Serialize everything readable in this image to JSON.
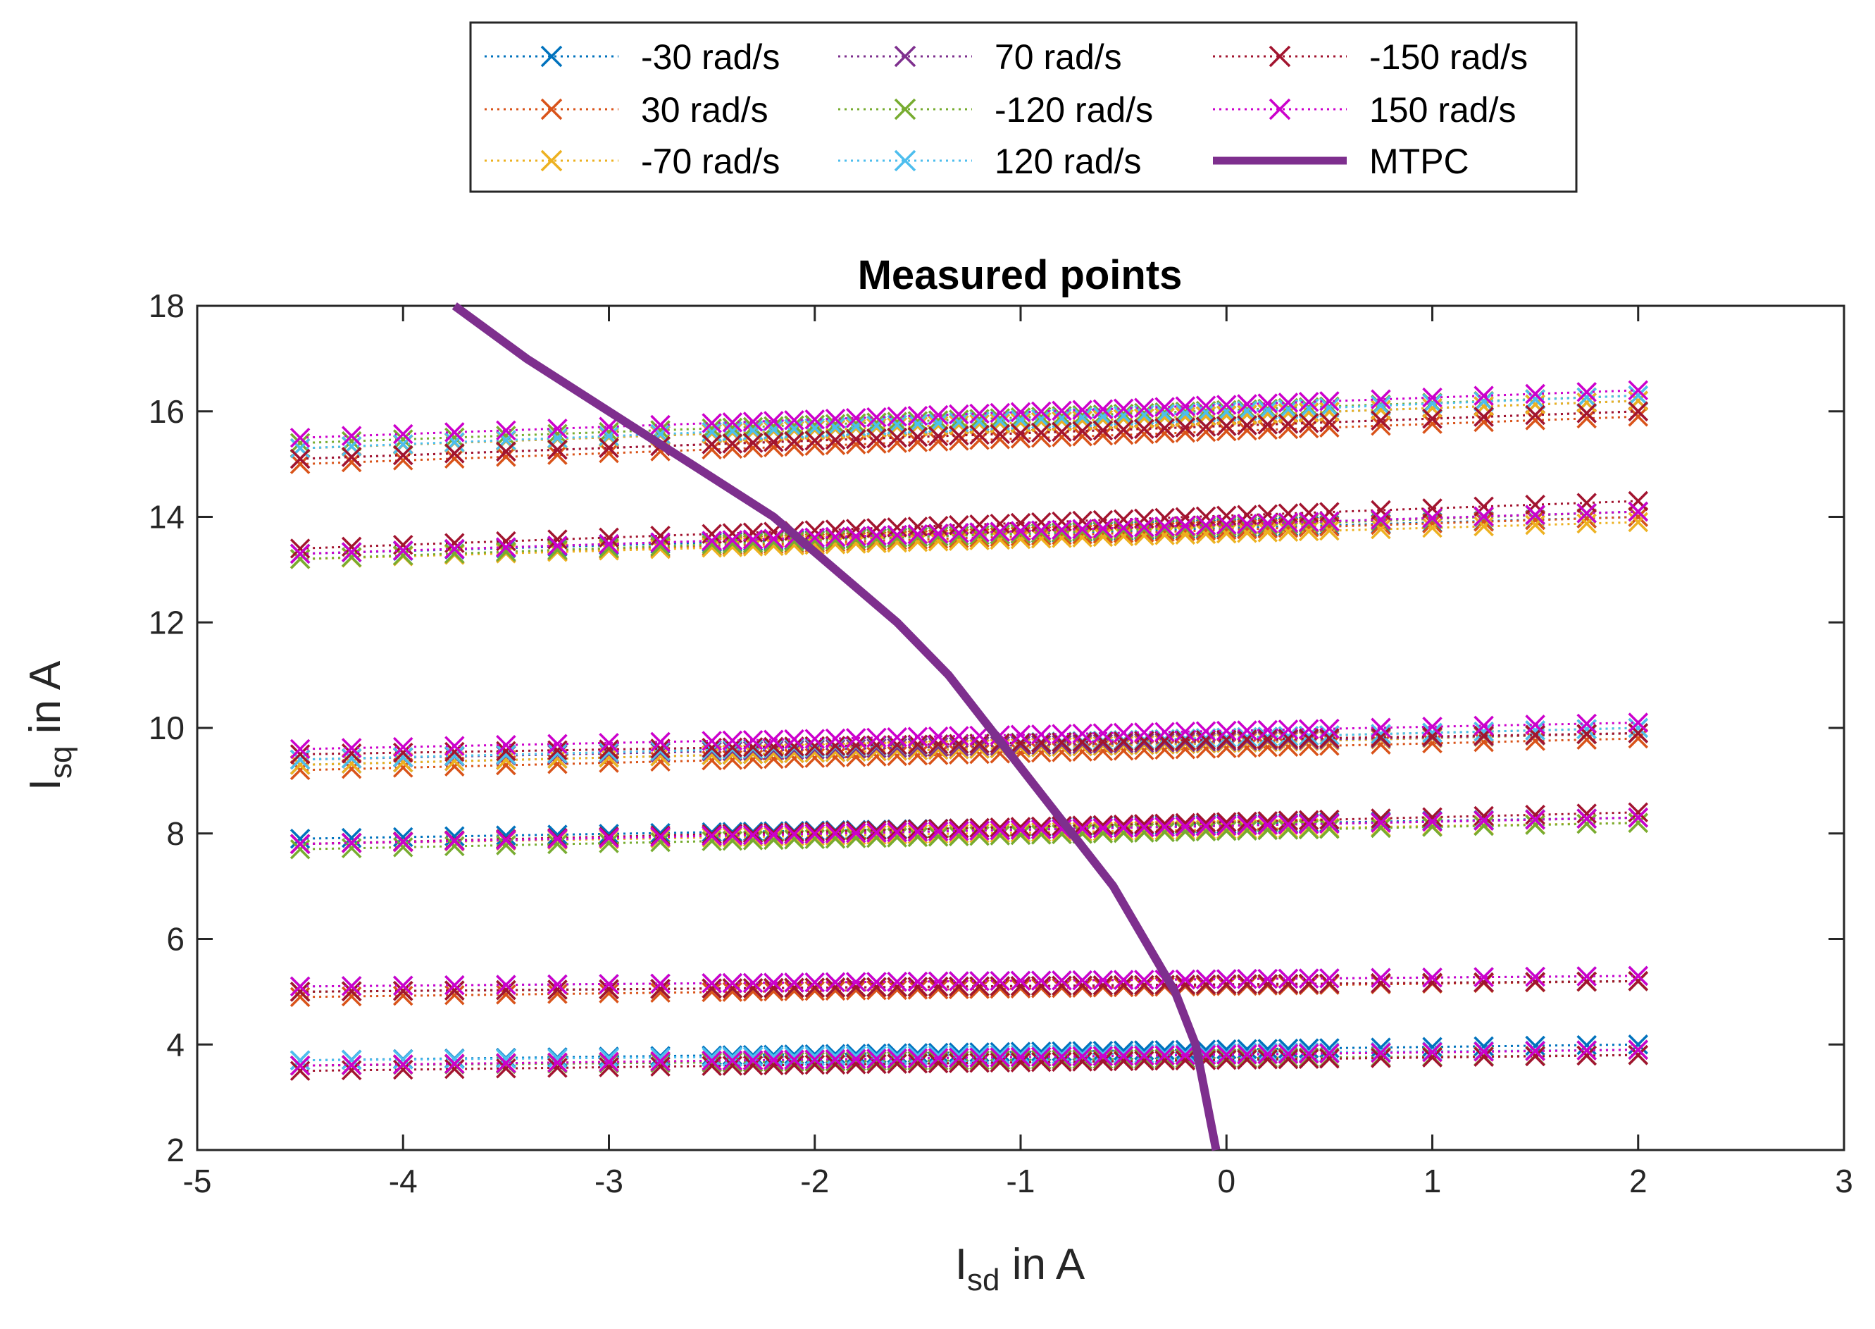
{
  "chart_data": {
    "type": "scatter",
    "title": "Measured points",
    "xlabel": {
      "main": "I",
      "sub": "sd",
      "suffix": " in A"
    },
    "ylabel": {
      "main": "I",
      "sub": "sq",
      "suffix": " in A"
    },
    "xlim": [
      -5,
      3
    ],
    "ylim": [
      2,
      18
    ],
    "xticks": [
      "-5",
      "-4",
      "-3",
      "-2",
      "-1",
      "0",
      "1",
      "2",
      "3"
    ],
    "yticks": [
      "2",
      "4",
      "6",
      "8",
      "10",
      "12",
      "14",
      "16",
      "18"
    ],
    "grid": false,
    "legend_position": "top",
    "x": [
      -4.5,
      -4.25,
      -4.0,
      -3.75,
      -3.5,
      -3.25,
      -3.0,
      -2.75,
      -2.5,
      -2.4,
      -2.3,
      -2.2,
      -2.1,
      -2.0,
      -1.9,
      -1.8,
      -1.7,
      -1.6,
      -1.5,
      -1.4,
      -1.3,
      -1.2,
      -1.1,
      -1.0,
      -0.9,
      -0.8,
      -0.7,
      -0.6,
      -0.5,
      -0.4,
      -0.3,
      -0.2,
      -0.1,
      0.0,
      0.1,
      0.2,
      0.3,
      0.4,
      0.5,
      0.75,
      1.0,
      1.25,
      1.5,
      1.75,
      2.0
    ],
    "series": [
      {
        "name": "-30 rad/s",
        "color": "#0072BD",
        "levels": [
          [
            15.3,
            16.2
          ],
          [
            13.3,
            14.0
          ],
          [
            9.3,
            9.9
          ],
          [
            7.9,
            8.3
          ],
          [
            5.0,
            5.2
          ],
          [
            3.7,
            4.0
          ]
        ]
      },
      {
        "name": "30 rad/s",
        "color": "#D95319",
        "levels": [
          [
            15.0,
            15.9
          ],
          [
            13.2,
            14.0
          ],
          [
            9.2,
            9.8
          ],
          [
            7.8,
            8.3
          ],
          [
            4.9,
            5.2
          ],
          [
            3.6,
            3.9
          ]
        ]
      },
      {
        "name": "-70 rad/s",
        "color": "#EDB120",
        "levels": [
          [
            15.3,
            16.2
          ],
          [
            13.2,
            13.9
          ],
          [
            9.3,
            9.9
          ],
          [
            7.8,
            8.2
          ],
          [
            5.0,
            5.2
          ],
          [
            3.6,
            3.9
          ]
        ]
      },
      {
        "name": "70 rad/s",
        "color": "#7E2F8E",
        "levels": [
          [
            15.1,
            16.0
          ],
          [
            13.3,
            14.1
          ],
          [
            9.4,
            9.9
          ],
          [
            7.8,
            8.3
          ],
          [
            5.0,
            5.2
          ],
          [
            3.6,
            3.8
          ]
        ]
      },
      {
        "name": "-120 rad/s",
        "color": "#77AC30",
        "levels": [
          [
            15.4,
            16.3
          ],
          [
            13.2,
            14.1
          ],
          [
            9.4,
            10.0
          ],
          [
            7.7,
            8.2
          ],
          [
            5.0,
            5.2
          ],
          [
            3.6,
            3.8
          ]
        ]
      },
      {
        "name": "120 rad/s",
        "color": "#4DBEEE",
        "levels": [
          [
            15.3,
            16.3
          ],
          [
            13.3,
            14.1
          ],
          [
            9.4,
            10.0
          ],
          [
            7.8,
            8.3
          ],
          [
            5.1,
            5.3
          ],
          [
            3.7,
            3.9
          ]
        ]
      },
      {
        "name": "-150 rad/s",
        "color": "#A2142F",
        "levels": [
          [
            15.1,
            16.0
          ],
          [
            13.4,
            14.3
          ],
          [
            9.5,
            9.9
          ],
          [
            7.8,
            8.4
          ],
          [
            5.0,
            5.2
          ],
          [
            3.5,
            3.8
          ]
        ]
      },
      {
        "name": "150 rad/s",
        "color": "#CC00CC",
        "levels": [
          [
            15.5,
            16.4
          ],
          [
            13.3,
            14.1
          ],
          [
            9.6,
            10.1
          ],
          [
            7.8,
            8.3
          ],
          [
            5.1,
            5.3
          ],
          [
            3.6,
            3.9
          ]
        ]
      }
    ],
    "mtpc": {
      "name": "MTPC",
      "color": "#7E2F8E",
      "x": [
        -3.75,
        -3.4,
        -3.0,
        -2.6,
        -2.2,
        -1.9,
        -1.6,
        -1.35,
        -1.15,
        -0.95,
        -0.75,
        -0.55,
        -0.4,
        -0.25,
        -0.15,
        -0.05
      ],
      "y": [
        18.0,
        17.0,
        16.0,
        15.0,
        14.0,
        13.0,
        12.0,
        11.0,
        10.0,
        9.0,
        8.0,
        7.0,
        6.0,
        5.0,
        4.0,
        2.0
      ]
    }
  }
}
